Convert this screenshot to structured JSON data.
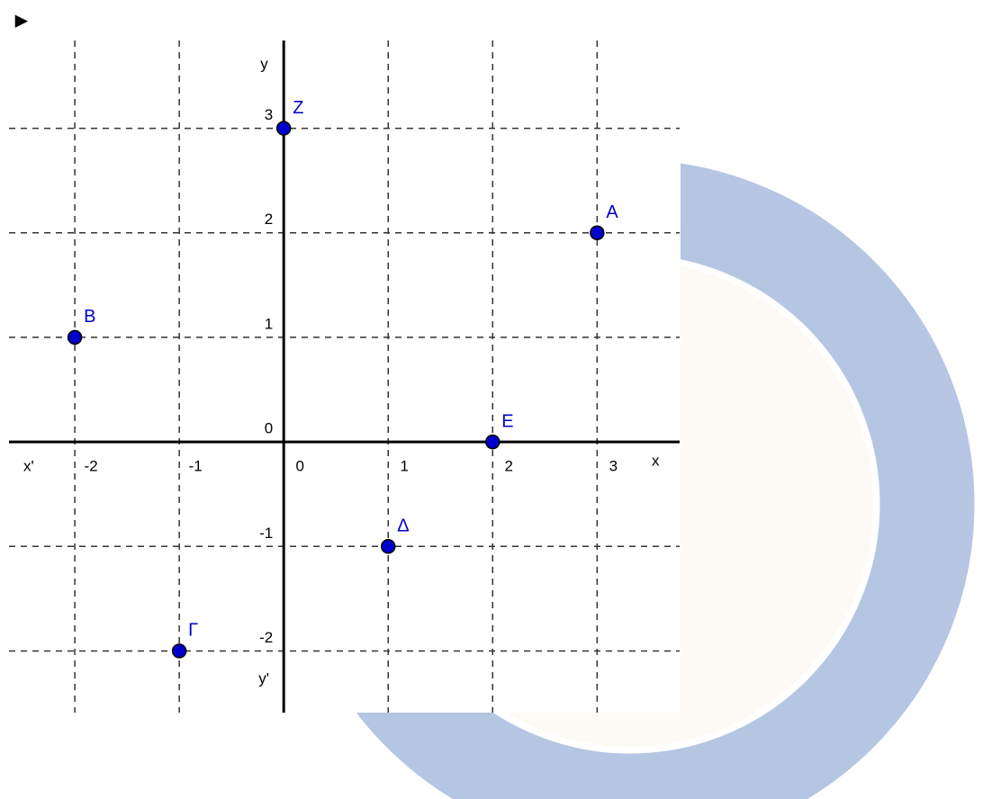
{
  "pointer": "►",
  "chart_data": {
    "type": "scatter",
    "axis_labels": {
      "x_neg": "x'",
      "x_pos": "x",
      "y_pos": "y",
      "y_neg": "y'"
    },
    "points": [
      {
        "label": "Α",
        "x": 3,
        "y": 2
      },
      {
        "label": "Β",
        "x": -2,
        "y": 1
      },
      {
        "label": "Γ",
        "x": -1,
        "y": -2
      },
      {
        "label": "Δ",
        "x": 1,
        "y": -1
      },
      {
        "label": "Ε",
        "x": 2,
        "y": 0
      },
      {
        "label": "Ζ",
        "x": 0,
        "y": 3
      }
    ],
    "color": "#0000cc",
    "xlim": [
      -2.63,
      3.79
    ],
    "ylim": [
      -2.59,
      3.84
    ],
    "xticks": [
      -2,
      -1,
      0,
      1,
      2,
      3
    ],
    "yticks": [
      -2,
      -1,
      0,
      1,
      2,
      3
    ],
    "grid": true
  }
}
